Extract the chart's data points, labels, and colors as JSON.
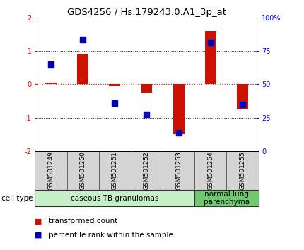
{
  "title": "GDS4256 / Hs.179243.0.A1_3p_at",
  "samples": [
    "GSM501249",
    "GSM501250",
    "GSM501251",
    "GSM501252",
    "GSM501253",
    "GSM501254",
    "GSM501255"
  ],
  "red_bars": [
    0.06,
    0.9,
    -0.05,
    -0.25,
    -1.5,
    1.6,
    -0.75
  ],
  "blue_squares_left": [
    0.6,
    1.35,
    -0.55,
    -0.9,
    -1.45,
    1.25,
    -0.6
  ],
  "ylim": [
    -2,
    2
  ],
  "yticks_left": [
    -2,
    -1,
    0,
    1,
    2
  ],
  "yticks_right_vals": [
    0,
    25,
    50,
    75,
    100
  ],
  "yticks_right_labels": [
    "0",
    "25",
    "50",
    "75",
    "100%"
  ],
  "cell_types": [
    {
      "label": "caseous TB granulomas",
      "start": 0,
      "end": 5,
      "color": "#c8f0c8"
    },
    {
      "label": "normal lung\nparenchyma",
      "start": 5,
      "end": 7,
      "color": "#70c870"
    }
  ],
  "bar_color": "#cc1100",
  "square_color": "#0000bb",
  "red_hline_color": "#dd2200",
  "black_hline_color": "#111111",
  "bar_width": 0.35,
  "square_size": 28,
  "title_fontsize": 9.5,
  "tick_fontsize": 7,
  "legend_fontsize": 7.5,
  "cell_type_label": "cell type",
  "legend_items": [
    {
      "color": "#cc1100",
      "label": "transformed count"
    },
    {
      "color": "#0000bb",
      "label": "percentile rank within the sample"
    }
  ],
  "sample_label_fontsize": 6.5,
  "bg_color": "#ffffff"
}
